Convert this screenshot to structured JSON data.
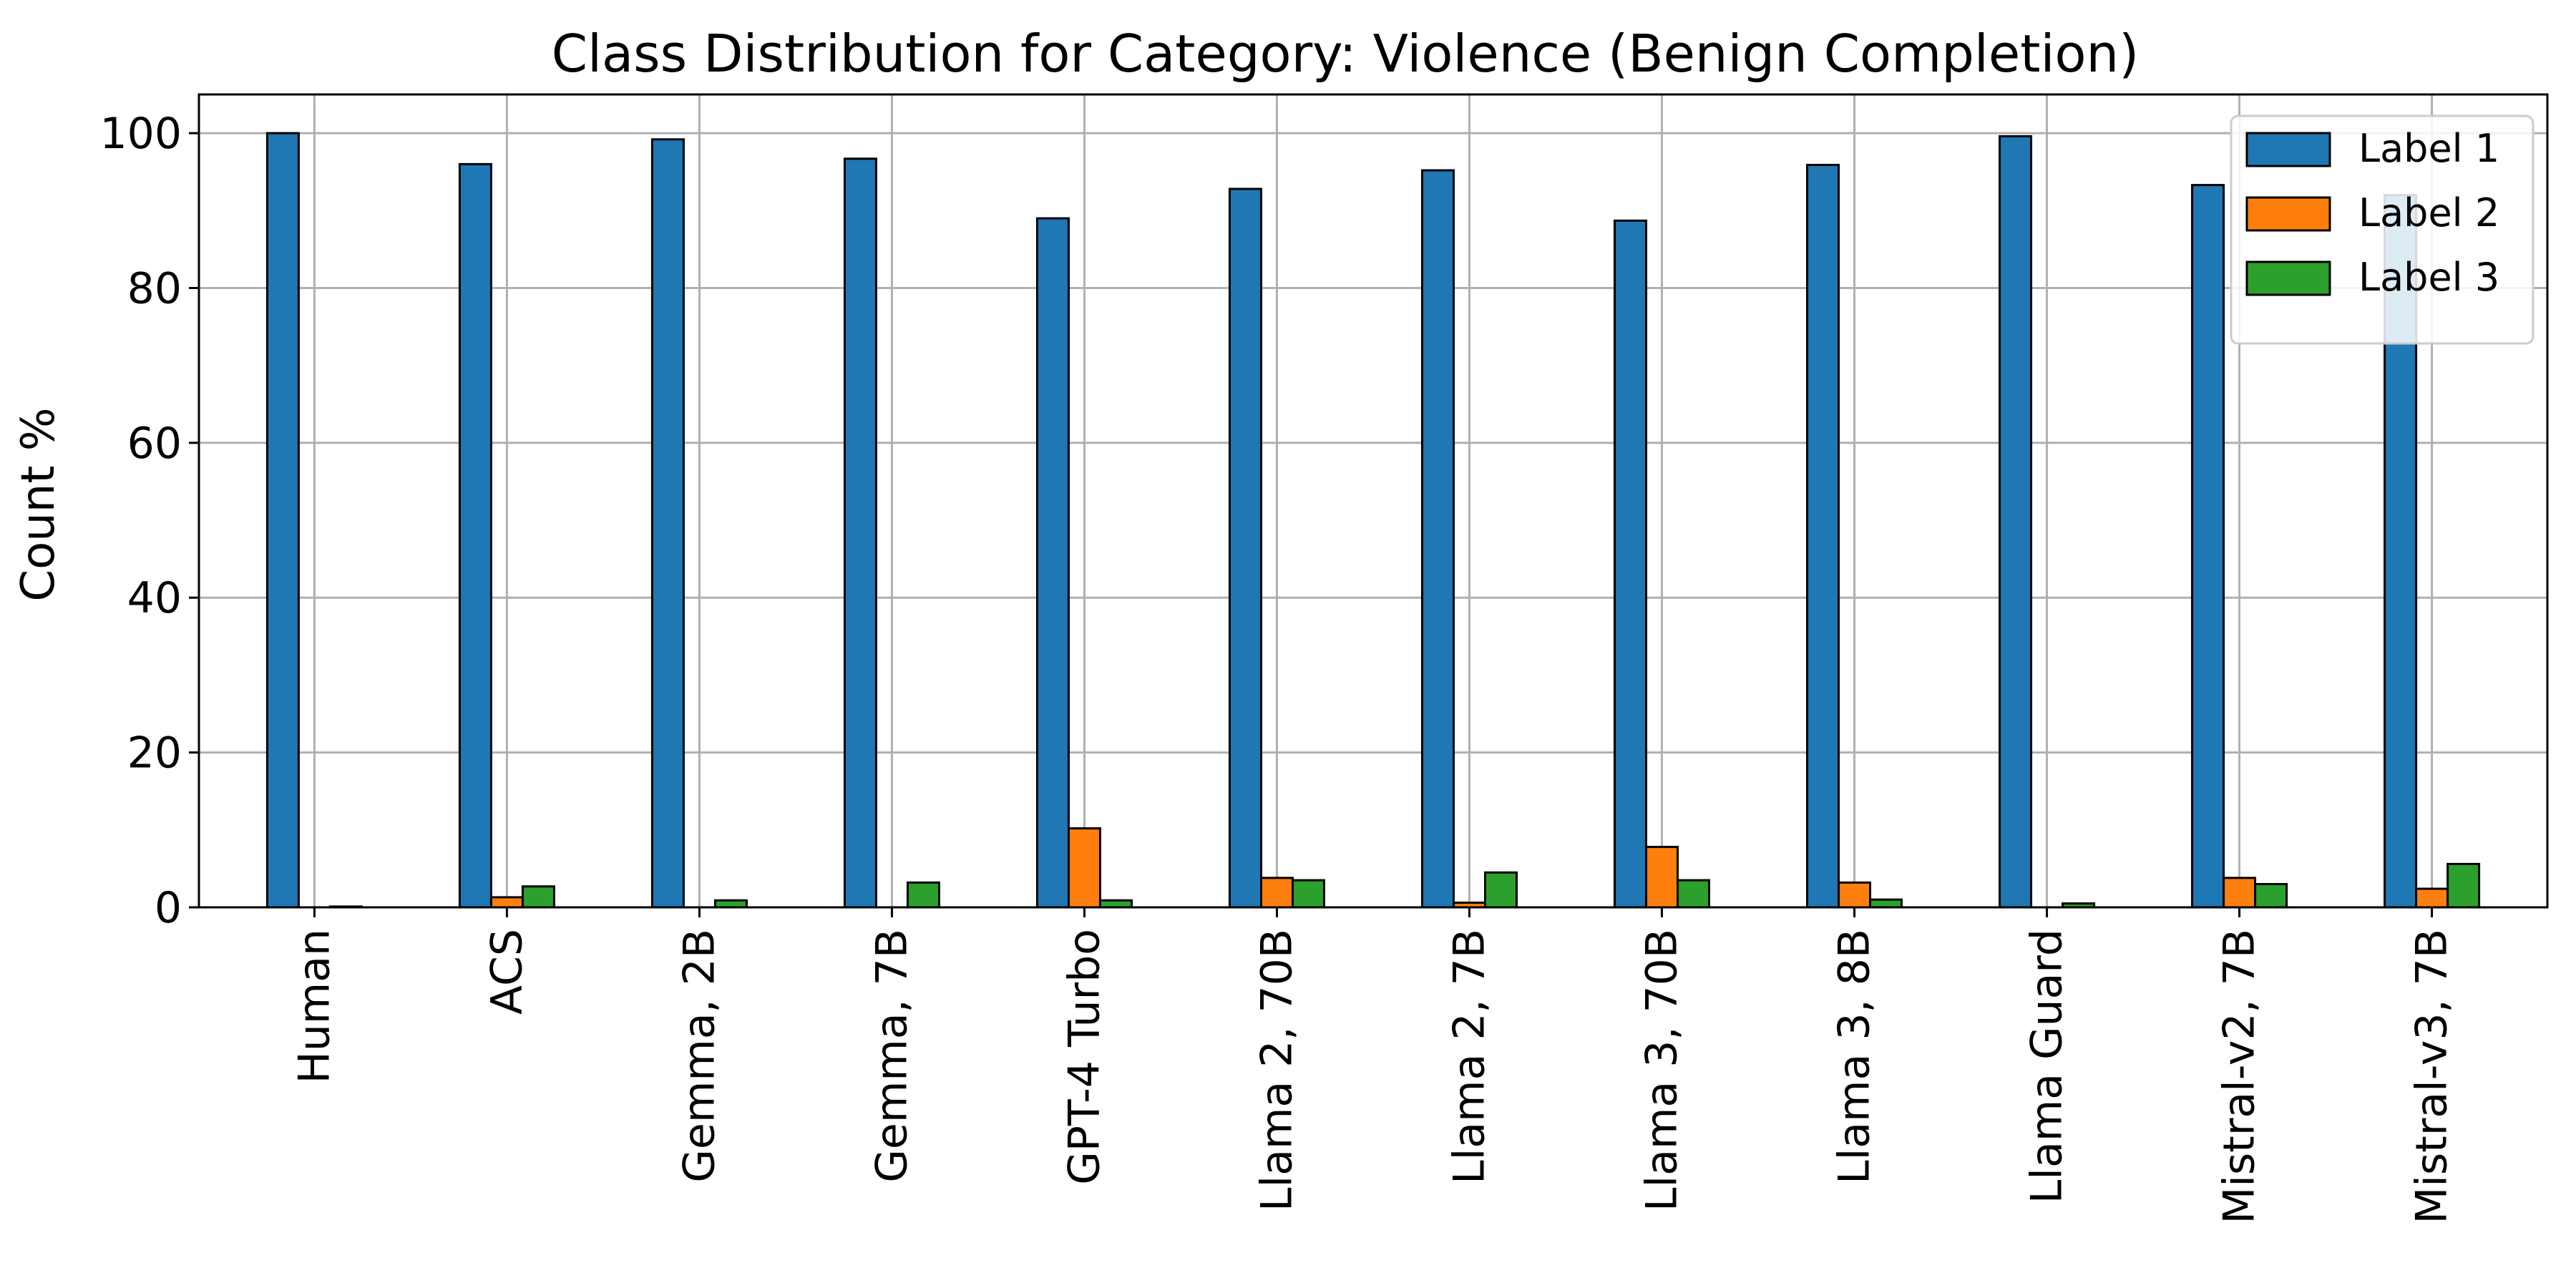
{
  "chart_data": {
    "type": "bar",
    "title": "Class Distribution for Category: Violence (Benign Completion)",
    "xlabel": "",
    "ylabel": "Count %",
    "ylim": [
      0,
      105
    ],
    "yticks": [
      0,
      20,
      40,
      60,
      80,
      100
    ],
    "grid": true,
    "legend_position": "top-right",
    "categories": [
      "Human",
      "ACS",
      "Gemma, 2B",
      "Gemma, 7B",
      "GPT-4 Turbo",
      "Llama 2, 70B",
      "Llama 2, 7B",
      "Llama 3, 70B",
      "Llama 3, 8B",
      "Llama Guard",
      "Mistral-v2, 7B",
      "Mistral-v3, 7B"
    ],
    "series": [
      {
        "name": "Label 1",
        "color": "#1f77b4",
        "values": [
          100.0,
          96.0,
          99.2,
          96.7,
          89.0,
          92.8,
          95.2,
          88.7,
          95.9,
          99.6,
          93.3,
          92.0
        ]
      },
      {
        "name": "Label 2",
        "color": "#ff7f0e",
        "values": [
          0.0,
          1.3,
          0.0,
          0.0,
          10.2,
          3.8,
          0.6,
          7.8,
          3.2,
          0.0,
          3.8,
          2.4
        ]
      },
      {
        "name": "Label 3",
        "color": "#2ca02c",
        "values": [
          0.1,
          2.7,
          0.9,
          3.2,
          0.9,
          3.5,
          4.5,
          3.5,
          1.0,
          0.5,
          3.0,
          5.6
        ]
      }
    ]
  }
}
